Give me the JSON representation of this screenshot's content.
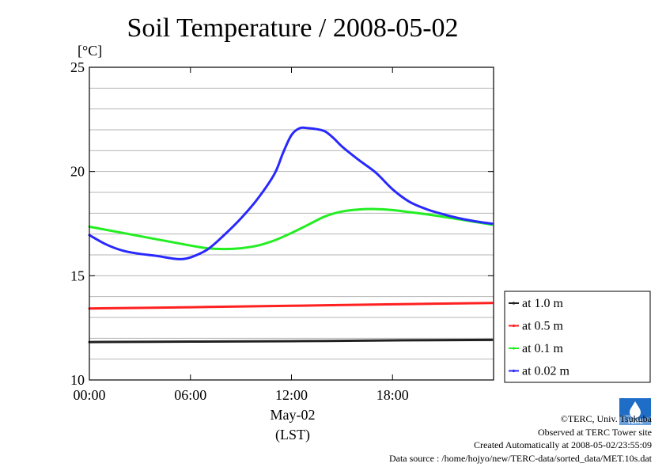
{
  "chart_data": {
    "type": "line",
    "title": "Soil Temperature / 2008-05-02",
    "yunit": "[°C]",
    "ylim": [
      10,
      25
    ],
    "yticks": [
      10,
      15,
      20,
      25
    ],
    "ygrid_step": 1,
    "xlim_hours": [
      0,
      24
    ],
    "xticks": [
      {
        "h": 0,
        "label": "00:00"
      },
      {
        "h": 6,
        "label": "06:00"
      },
      {
        "h": 12,
        "label": "12:00"
      },
      {
        "h": 18,
        "label": "18:00"
      }
    ],
    "xlabel_date": "May-02",
    "xlabel_zone": "(LST)",
    "grid": true,
    "legend_position": "lower-right-outside",
    "series": [
      {
        "name": "at 1.0 m",
        "color": "#202020",
        "hours": [
          0,
          6,
          12,
          18,
          23.9
        ],
        "values": [
          11.82,
          11.84,
          11.86,
          11.9,
          11.92
        ]
      },
      {
        "name": "at 0.5 m",
        "color": "#ff2020",
        "hours": [
          0,
          6,
          12,
          18,
          23.9
        ],
        "values": [
          13.43,
          13.49,
          13.56,
          13.63,
          13.69
        ]
      },
      {
        "name": "at 0.1 m",
        "color": "#22ee22",
        "hours": [
          0,
          2,
          4,
          6,
          7,
          8,
          9,
          10,
          11,
          12,
          13,
          14,
          15,
          16,
          17,
          18,
          20,
          22,
          23.9
        ],
        "values": [
          17.35,
          17.05,
          16.75,
          16.45,
          16.32,
          16.28,
          16.32,
          16.45,
          16.7,
          17.05,
          17.45,
          17.85,
          18.08,
          18.18,
          18.2,
          18.15,
          17.95,
          17.7,
          17.45
        ]
      },
      {
        "name": "at 0.02 m",
        "color": "#2828ff",
        "hours": [
          0,
          1,
          2,
          3,
          4,
          5,
          5.5,
          6,
          7,
          8,
          9,
          10,
          11,
          11.5,
          12,
          12.5,
          13,
          13.5,
          14,
          14.5,
          15,
          16,
          17,
          18,
          19,
          20,
          21,
          22,
          23,
          23.9
        ],
        "values": [
          16.95,
          16.5,
          16.2,
          16.05,
          15.95,
          15.82,
          15.8,
          15.88,
          16.25,
          16.95,
          17.75,
          18.7,
          19.9,
          20.9,
          21.75,
          22.08,
          22.08,
          22.03,
          21.92,
          21.6,
          21.2,
          20.55,
          19.95,
          19.15,
          18.55,
          18.2,
          17.95,
          17.75,
          17.6,
          17.5
        ]
      }
    ]
  },
  "footer": {
    "copyright": "©TERC, Univ. Tsukuba",
    "observed": "Observed at TERC Tower site",
    "created": "Created Automatically at 2008-05-02/23:55:09",
    "source": "Data source : /home/hojyo/new/TERC-data/sorted_data/MET.10s.dat",
    "logo_text": "TERC"
  }
}
